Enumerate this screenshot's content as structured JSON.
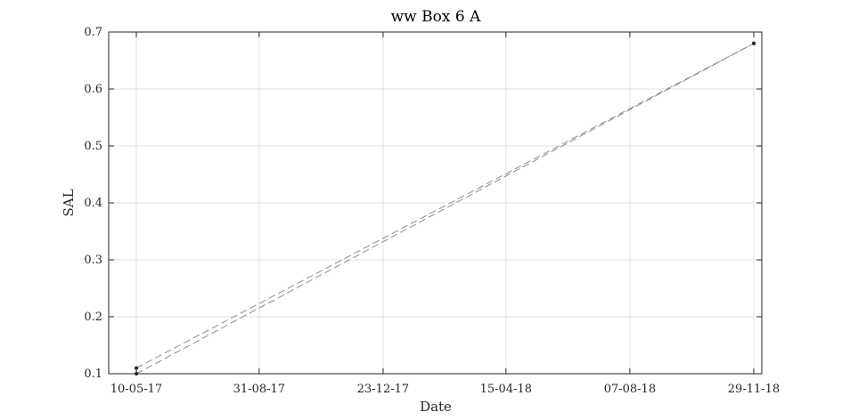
{
  "chart_data": {
    "type": "line",
    "title": "ww Box 6 A",
    "xlabel": "Date",
    "ylabel": "SAL",
    "x_ticks": [
      "10-05-17",
      "31-08-17",
      "23-12-17",
      "15-04-18",
      "07-08-18",
      "29-11-18"
    ],
    "xlim": [
      "10-05-17",
      "29-11-18"
    ],
    "ylim": [
      0.1,
      0.7
    ],
    "y_ticks": [
      0.1,
      0.2,
      0.3,
      0.4,
      0.5,
      0.6,
      0.7
    ],
    "grid": true,
    "series": [
      {
        "points": [
          {
            "x": "10-05-17",
            "y": 0.11
          },
          {
            "x": "29-11-18",
            "y": 0.68
          }
        ],
        "style": "dashed",
        "color": "#8c8c8c"
      },
      {
        "points": [
          {
            "x": "10-05-17",
            "y": 0.1
          },
          {
            "x": "29-11-18",
            "y": 0.68
          }
        ],
        "style": "dashed",
        "color": "#8c8c8c"
      }
    ],
    "colors": {
      "axis": "#262626",
      "grid": "#e3e3e3",
      "marker": "#262626"
    }
  }
}
